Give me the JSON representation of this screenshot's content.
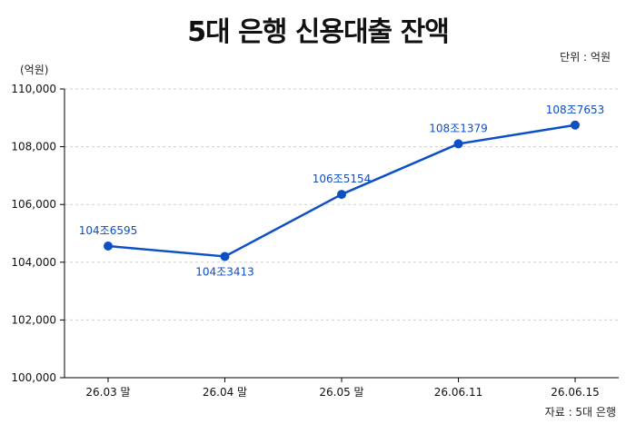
{
  "header": {
    "title": "5대 은행 신용대출 잔액",
    "unit_note": "단위 : 억원",
    "y_unit": "(억원)",
    "source": "자료 : 5대 은행"
  },
  "colors": {
    "line": "#0d4fc4",
    "label": "#0d4fc4",
    "grid": "#cfcfcf",
    "axis": "#000000"
  },
  "chart_data": {
    "type": "line",
    "title": "5대 은행 신용대출 잔액",
    "xlabel": "",
    "ylabel": "(억원)",
    "categories": [
      "26.03 말",
      "26.04 말",
      "26.05 말",
      "26.06.11",
      "26.06.15"
    ],
    "series": [
      {
        "values": [
          104560,
          104200,
          106350,
          108100,
          108750
        ],
        "labels": [
          "104조6595",
          "104조3413",
          "106조5154",
          "108조1379",
          "108조7653"
        ]
      }
    ],
    "ylim": [
      100000,
      110000
    ],
    "yticks": [
      100000,
      102000,
      104000,
      106000,
      108000,
      110000
    ],
    "ytick_labels": [
      "100,000",
      "102,000",
      "104,000",
      "106,000",
      "108,000",
      "110,000"
    ],
    "label_positions": [
      "above",
      "below",
      "above",
      "above",
      "above"
    ],
    "grid": "horizontal-dashed",
    "legend": "none"
  }
}
